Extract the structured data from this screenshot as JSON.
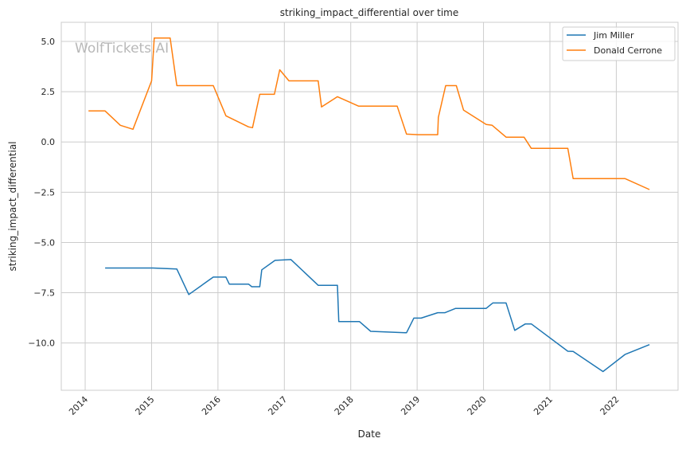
{
  "chart_data": {
    "type": "line",
    "title": "striking_impact_differential over time",
    "xlabel": "Date",
    "ylabel": "striking_impact_differential",
    "watermark": "WolfTickets.AI",
    "xlim": [
      2013.64,
      2022.93
    ],
    "ylim": [
      -12.35,
      5.95
    ],
    "x_ticks": [
      2014,
      2015,
      2016,
      2017,
      2018,
      2019,
      2020,
      2021,
      2022
    ],
    "x_tick_labels": [
      "2014",
      "2015",
      "2016",
      "2017",
      "2018",
      "2019",
      "2020",
      "2021",
      "2022"
    ],
    "y_ticks": [
      5.0,
      2.5,
      0.0,
      -2.5,
      -5.0,
      -7.5,
      -10.0
    ],
    "y_tick_labels": [
      "5.0",
      "2.5",
      "0.0",
      "−2.5",
      "−5.0",
      "−7.5",
      "−10.0"
    ],
    "grid": true,
    "legend_position": "top-right",
    "series": [
      {
        "name": "Jim Miller",
        "color": "#1f77b4",
        "x": [
          2014.3,
          2015.02,
          2015.38,
          2015.56,
          2015.93,
          2016.12,
          2016.17,
          2016.46,
          2016.51,
          2016.63,
          2016.66,
          2016.86,
          2017.1,
          2017.51,
          2017.8,
          2017.82,
          2018.13,
          2018.3,
          2018.84,
          2018.95,
          2019.06,
          2019.31,
          2019.42,
          2019.58,
          2020.04,
          2020.14,
          2020.34,
          2020.47,
          2020.63,
          2020.72,
          2021.27,
          2021.35,
          2021.8,
          2022.13,
          2022.5
        ],
        "y": [
          -6.27,
          -6.27,
          -6.32,
          -7.59,
          -6.72,
          -6.72,
          -7.07,
          -7.07,
          -7.2,
          -7.2,
          -6.36,
          -5.89,
          -5.85,
          -7.13,
          -7.13,
          -8.93,
          -8.93,
          -9.42,
          -9.49,
          -8.76,
          -8.76,
          -8.49,
          -8.49,
          -8.28,
          -8.28,
          -8.01,
          -8.01,
          -9.37,
          -9.05,
          -9.05,
          -10.41,
          -10.42,
          -11.42,
          -10.57,
          -10.08
        ]
      },
      {
        "name": "Donald Cerrone",
        "color": "#ff7f0e",
        "x": [
          2014.05,
          2014.3,
          2014.53,
          2014.72,
          2015.0,
          2015.04,
          2015.28,
          2015.38,
          2015.93,
          2016.12,
          2016.46,
          2016.52,
          2016.63,
          2016.85,
          2016.93,
          2017.07,
          2017.51,
          2017.56,
          2017.8,
          2018.12,
          2018.27,
          2018.7,
          2018.84,
          2019.02,
          2019.31,
          2019.32,
          2019.43,
          2019.59,
          2019.7,
          2020.04,
          2020.13,
          2020.34,
          2020.61,
          2020.72,
          2021.27,
          2021.35,
          2022.13,
          2022.5
        ],
        "y": [
          1.54,
          1.54,
          0.83,
          0.63,
          3.04,
          5.17,
          5.17,
          2.8,
          2.8,
          1.3,
          0.75,
          0.71,
          2.37,
          2.37,
          3.59,
          3.04,
          3.04,
          1.74,
          2.25,
          1.78,
          1.78,
          1.78,
          0.39,
          0.36,
          0.36,
          1.22,
          2.8,
          2.8,
          1.58,
          0.87,
          0.83,
          0.24,
          0.24,
          -0.32,
          -0.32,
          -1.82,
          -1.82,
          -2.37
        ]
      }
    ]
  }
}
